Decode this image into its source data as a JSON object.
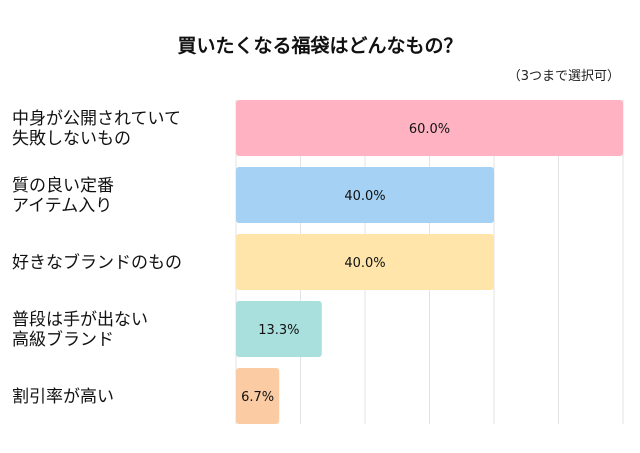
{
  "chart_data": {
    "type": "bar",
    "orientation": "horizontal",
    "title": "買いたくなる福袋はどんなもの？",
    "subtitle": "（3つまで選択可）",
    "categories": [
      [
        "中身が公開されていて",
        "失敗しないもの"
      ],
      [
        "質の良い定番",
        "アイテム入り"
      ],
      [
        "好きなブランドのもの"
      ],
      [
        "普段は手が出ない",
        "高級ブランド"
      ],
      [
        "割引率が高い"
      ]
    ],
    "values": [
      60.0,
      40.0,
      40.0,
      13.3,
      6.7
    ],
    "value_labels": [
      "60.0%",
      "40.0%",
      "40.0%",
      "13.3%",
      "6.7%"
    ],
    "colors": [
      "#FFB3C2",
      "#A4D1F4",
      "#FFE5AA",
      "#A9E0DD",
      "#FBCCA3"
    ],
    "xlim": [
      0,
      60
    ],
    "grid": true,
    "grid_step": 10,
    "unit": "%"
  }
}
